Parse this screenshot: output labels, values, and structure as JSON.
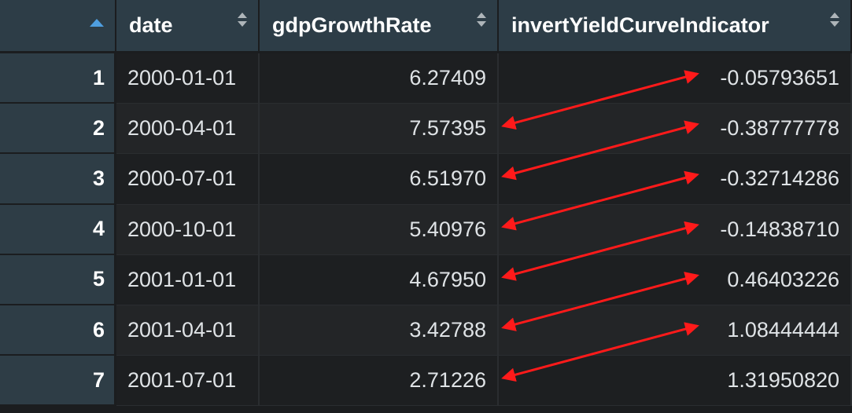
{
  "columns": {
    "date": "date",
    "gdp": "gdpGrowthRate",
    "indicator": "invertYieldCurveIndicator"
  },
  "rows": [
    {
      "index": "1",
      "date": "2000-01-01",
      "gdp": "6.27409",
      "indicator": "-0.05793651"
    },
    {
      "index": "2",
      "date": "2000-04-01",
      "gdp": "7.57395",
      "indicator": "-0.38777778"
    },
    {
      "index": "3",
      "date": "2000-07-01",
      "gdp": "6.51970",
      "indicator": "-0.32714286"
    },
    {
      "index": "4",
      "date": "2000-10-01",
      "gdp": "5.40976",
      "indicator": "-0.14838710"
    },
    {
      "index": "5",
      "date": "2001-01-01",
      "gdp": "4.67950",
      "indicator": "0.46403226"
    },
    {
      "index": "6",
      "date": "2001-04-01",
      "gdp": "3.42788",
      "indicator": "1.08444444"
    },
    {
      "index": "7",
      "date": "2001-07-01",
      "gdp": "2.71226",
      "indicator": "1.31950820"
    }
  ],
  "colors": {
    "annotation_arrow": "#ff1a1a",
    "sort_active": "#4f9fe0",
    "header_bg": "#2d3d47"
  },
  "icons": {
    "index_header": "sort-ascending-icon",
    "column_headers": "sort-toggle-icon"
  }
}
